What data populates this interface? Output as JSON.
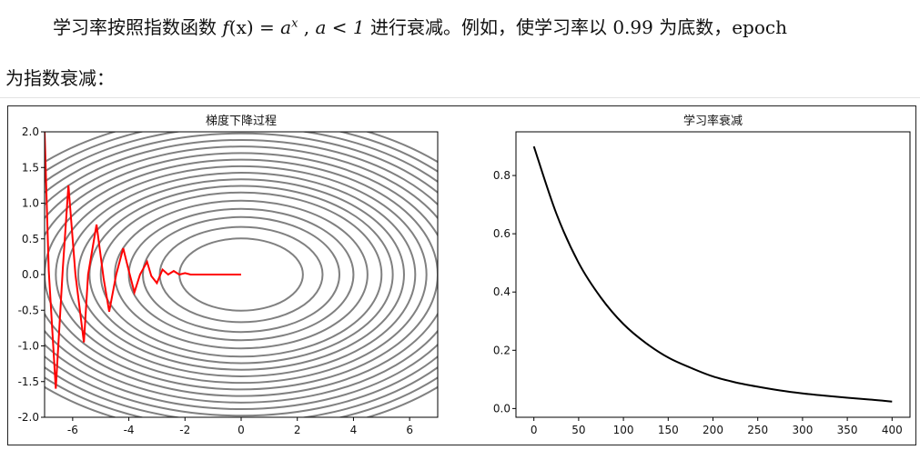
{
  "text": {
    "line1_before": "学习率按照指数函数 ",
    "formula_f": "f",
    "formula_args": "(x) = ",
    "formula_a": "a",
    "formula_exp": "x",
    "formula_sep": " , ",
    "formula_cond": "a < 1",
    "line1_after": "  进行衰减。例如，使学习率以 0.99 为底数，epoch",
    "line2": "为指数衰减："
  },
  "chart_data": [
    {
      "type": "line",
      "title": "梯度下降过程",
      "xlim": [
        -7,
        7
      ],
      "ylim": [
        -2,
        2
      ],
      "xticks": [
        "-6",
        "-4",
        "-2",
        "0",
        "2",
        "4",
        "6"
      ],
      "yticks": [
        "-2.0",
        "-1.5",
        "-1.0",
        "-0.5",
        "0.0",
        "0.5",
        "1.0",
        "1.5",
        "2.0"
      ],
      "contours": {
        "center": [
          0,
          0
        ],
        "x_semi_axes_approx": [
          2.2,
          2.9,
          3.5,
          4.0,
          4.5,
          5.0,
          5.4,
          5.8,
          6.2,
          6.6,
          7.0,
          7.4,
          7.8,
          8.2,
          8.6,
          9.0,
          9.4,
          9.8
        ],
        "aspect_y_over_x": 0.23,
        "color": "#808080"
      },
      "path": {
        "color": "#ff0000",
        "x": [
          -7.0,
          -6.85,
          -6.6,
          -6.35,
          -6.15,
          -5.9,
          -5.6,
          -5.45,
          -5.15,
          -4.9,
          -4.7,
          -4.45,
          -4.2,
          -4.0,
          -3.8,
          -3.6,
          -3.35,
          -3.2,
          -3.0,
          -2.8,
          -2.6,
          -2.4,
          -2.2,
          -2.0,
          -1.8,
          -1.5,
          -1.0,
          -0.5,
          0.0
        ],
        "y": [
          2.0,
          0.05,
          -1.6,
          0.1,
          1.25,
          0.0,
          -0.95,
          0.0,
          0.7,
          -0.05,
          -0.52,
          0.0,
          0.37,
          0.05,
          -0.25,
          0.0,
          0.18,
          -0.02,
          -0.12,
          0.07,
          0.0,
          0.05,
          0.0,
          0.02,
          0.0,
          0.0,
          0.0,
          0.0,
          0.0
        ]
      }
    },
    {
      "type": "line",
      "title": "学习率衰减",
      "xlim": [
        -20,
        420
      ],
      "ylim": [
        -0.03,
        0.95
      ],
      "xticks": [
        "0",
        "50",
        "100",
        "150",
        "200",
        "250",
        "300",
        "350",
        "400"
      ],
      "yticks": [
        "0.0",
        "0.2",
        "0.4",
        "0.6",
        "0.8"
      ],
      "series": [
        {
          "color": "#000000",
          "x": [
            0,
            25,
            50,
            75,
            100,
            125,
            150,
            175,
            200,
            225,
            250,
            275,
            300,
            325,
            350,
            375,
            400
          ],
          "y": [
            0.9,
            0.67,
            0.5,
            0.38,
            0.29,
            0.225,
            0.175,
            0.14,
            0.11,
            0.09,
            0.075,
            0.062,
            0.052,
            0.044,
            0.037,
            0.031,
            0.024
          ]
        }
      ]
    }
  ]
}
